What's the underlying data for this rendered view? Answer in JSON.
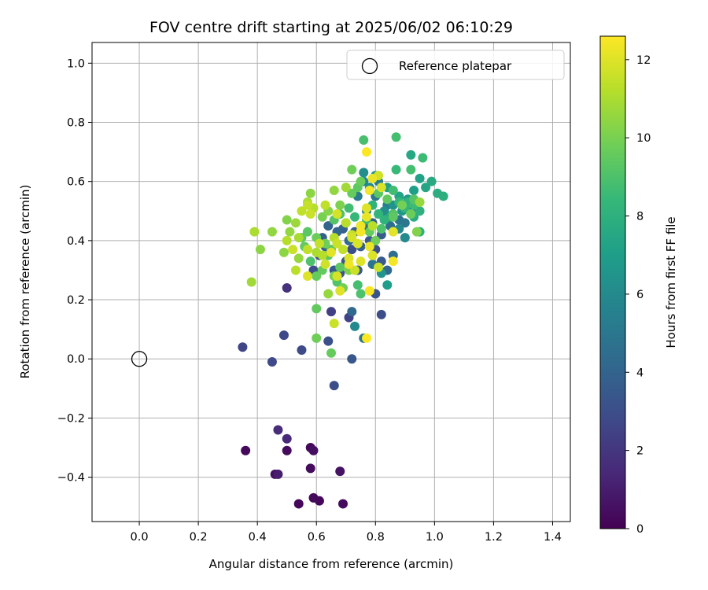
{
  "chart_data": {
    "type": "scatter",
    "title": "FOV centre drift starting at 2025/06/02 06:10:29",
    "xlabel": "Angular distance from reference (arcmin)",
    "ylabel": "Rotation from reference (arcmin)",
    "xlim": [
      -0.16,
      1.46
    ],
    "ylim": [
      -0.55,
      1.07
    ],
    "xticks": [
      "0.0",
      "0.2",
      "0.4",
      "0.6",
      "0.8",
      "1.0",
      "1.2",
      "1.4"
    ],
    "xtick_values": [
      0.0,
      0.2,
      0.4,
      0.6,
      0.8,
      1.0,
      1.2,
      1.4
    ],
    "yticks": [
      "−0.4",
      "−0.2",
      "0.0",
      "0.2",
      "0.4",
      "0.6",
      "0.8",
      "1.0"
    ],
    "ytick_values": [
      -0.4,
      -0.2,
      0.0,
      0.2,
      0.4,
      0.6,
      0.8,
      1.0
    ],
    "grid": true,
    "legend": {
      "placement": "top-right",
      "entries": [
        "Reference platepar"
      ]
    },
    "reference_point": {
      "x": 0.0,
      "y": 0.0,
      "marker": "open-circle"
    },
    "colorbar": {
      "label": "Hours from first FF file",
      "colormap": "viridis",
      "range": [
        0,
        12.6
      ],
      "ticks": [
        "0",
        "2",
        "4",
        "6",
        "8",
        "10",
        "12"
      ],
      "tick_values": [
        0,
        2,
        4,
        6,
        8,
        10,
        12
      ]
    },
    "points": [
      [
        0.36,
        -0.31,
        0.3
      ],
      [
        0.46,
        -0.39,
        0.5
      ],
      [
        0.5,
        -0.31,
        0.4
      ],
      [
        0.54,
        -0.49,
        0.2
      ],
      [
        0.58,
        -0.3,
        0.3
      ],
      [
        0.59,
        -0.31,
        0.5
      ],
      [
        0.58,
        -0.37,
        0.4
      ],
      [
        0.59,
        -0.47,
        0.3
      ],
      [
        0.61,
        -0.48,
        0.2
      ],
      [
        0.69,
        -0.49,
        0.4
      ],
      [
        0.68,
        -0.38,
        0.6
      ],
      [
        0.47,
        -0.24,
        1.6
      ],
      [
        0.5,
        -0.27,
        1.5
      ],
      [
        0.47,
        -0.39,
        1.0
      ],
      [
        0.35,
        0.04,
        2.6
      ],
      [
        0.45,
        -0.01,
        2.8
      ],
      [
        0.49,
        0.08,
        2.7
      ],
      [
        0.55,
        0.03,
        2.9
      ],
      [
        0.5,
        0.24,
        1.8
      ],
      [
        0.66,
        -0.09,
        3.0
      ],
      [
        0.64,
        0.06,
        3.1
      ],
      [
        0.65,
        0.16,
        2.4
      ],
      [
        0.71,
        0.14,
        2.5
      ],
      [
        0.72,
        0.0,
        3.4
      ],
      [
        0.82,
        0.15,
        3.0
      ],
      [
        0.8,
        0.22,
        3.3
      ],
      [
        0.76,
        0.07,
        5.0
      ],
      [
        0.73,
        0.11,
        6.0
      ],
      [
        0.72,
        0.16,
        4.2
      ],
      [
        0.59,
        0.3,
        3.0
      ],
      [
        0.61,
        0.35,
        3.2
      ],
      [
        0.63,
        0.38,
        3.5
      ],
      [
        0.66,
        0.3,
        3.6
      ],
      [
        0.68,
        0.29,
        3.2
      ],
      [
        0.7,
        0.33,
        3.3
      ],
      [
        0.72,
        0.37,
        3.0
      ],
      [
        0.74,
        0.3,
        3.5
      ],
      [
        0.75,
        0.38,
        3.8
      ],
      [
        0.78,
        0.4,
        3.4
      ],
      [
        0.8,
        0.37,
        3.1
      ],
      [
        0.82,
        0.33,
        3.6
      ],
      [
        0.84,
        0.3,
        4.2
      ],
      [
        0.86,
        0.35,
        4.5
      ],
      [
        0.62,
        0.41,
        3.8
      ],
      [
        0.64,
        0.45,
        4.0
      ],
      [
        0.67,
        0.43,
        4.1
      ],
      [
        0.69,
        0.44,
        3.9
      ],
      [
        0.71,
        0.4,
        4.3
      ],
      [
        0.73,
        0.43,
        3.7
      ],
      [
        0.76,
        0.45,
        4.4
      ],
      [
        0.79,
        0.46,
        4.0
      ],
      [
        0.82,
        0.42,
        3.6
      ],
      [
        0.85,
        0.45,
        4.6
      ],
      [
        0.88,
        0.47,
        4.8
      ],
      [
        0.9,
        0.46,
        5.0
      ],
      [
        0.92,
        0.5,
        5.3
      ],
      [
        0.84,
        0.52,
        5.4
      ],
      [
        0.8,
        0.55,
        5.0
      ],
      [
        0.77,
        0.5,
        5.6
      ],
      [
        0.74,
        0.55,
        5.2
      ],
      [
        0.76,
        0.6,
        5.8
      ],
      [
        0.78,
        0.58,
        6.0
      ],
      [
        0.81,
        0.6,
        5.2
      ],
      [
        0.83,
        0.5,
        6.2
      ],
      [
        0.86,
        0.52,
        6.4
      ],
      [
        0.89,
        0.5,
        6.6
      ],
      [
        0.91,
        0.54,
        6.8
      ],
      [
        0.93,
        0.57,
        7.0
      ],
      [
        0.95,
        0.61,
        7.2
      ],
      [
        0.97,
        0.58,
        7.4
      ],
      [
        0.99,
        0.6,
        7.6
      ],
      [
        1.01,
        0.56,
        7.8
      ],
      [
        1.03,
        0.55,
        7.9
      ],
      [
        0.88,
        0.55,
        7.3
      ],
      [
        0.84,
        0.58,
        7.1
      ],
      [
        0.8,
        0.62,
        6.5
      ],
      [
        0.76,
        0.63,
        6.2
      ],
      [
        0.9,
        0.41,
        6.0
      ],
      [
        0.88,
        0.44,
        5.9
      ],
      [
        0.85,
        0.48,
        7.6
      ],
      [
        0.84,
        0.25,
        7.0
      ],
      [
        0.82,
        0.29,
        6.5
      ],
      [
        0.79,
        0.32,
        4.8
      ],
      [
        0.93,
        0.48,
        7.8
      ],
      [
        0.95,
        0.43,
        8.0
      ],
      [
        0.96,
        0.68,
        8.6
      ],
      [
        0.92,
        0.69,
        7.5
      ],
      [
        0.92,
        0.64,
        8.8
      ],
      [
        0.87,
        0.64,
        8.5
      ],
      [
        0.76,
        0.74,
        8.9
      ],
      [
        0.87,
        0.75,
        8.8
      ],
      [
        0.86,
        0.57,
        8.7
      ],
      [
        0.88,
        0.53,
        8.4
      ],
      [
        0.9,
        0.51,
        8.3
      ],
      [
        0.91,
        0.53,
        8.2
      ],
      [
        0.93,
        0.52,
        8.6
      ],
      [
        0.95,
        0.5,
        8.0
      ],
      [
        0.83,
        0.47,
        8.1
      ],
      [
        0.81,
        0.49,
        8.3
      ],
      [
        0.79,
        0.52,
        8.2
      ],
      [
        0.77,
        0.47,
        8.5
      ],
      [
        0.75,
        0.45,
        8.8
      ],
      [
        0.73,
        0.48,
        8.4
      ],
      [
        0.71,
        0.51,
        8.7
      ],
      [
        0.7,
        0.46,
        8.6
      ],
      [
        0.68,
        0.49,
        9.0
      ],
      [
        0.66,
        0.47,
        9.2
      ],
      [
        0.74,
        0.25,
        8.8
      ],
      [
        0.75,
        0.22,
        9.0
      ],
      [
        0.74,
        0.58,
        9.4
      ],
      [
        0.72,
        0.64,
        9.8
      ],
      [
        0.72,
        0.56,
        9.6
      ],
      [
        0.75,
        0.6,
        9.7
      ],
      [
        0.81,
        0.56,
        9.3
      ],
      [
        0.84,
        0.54,
        9.5
      ],
      [
        0.86,
        0.49,
        9.1
      ],
      [
        0.82,
        0.44,
        9.0
      ],
      [
        0.78,
        0.43,
        9.6
      ],
      [
        0.8,
        0.4,
        9.8
      ],
      [
        0.86,
        0.48,
        9.4
      ],
      [
        0.89,
        0.52,
        9.9
      ],
      [
        0.92,
        0.49,
        9.7
      ],
      [
        0.94,
        0.43,
        10.2
      ],
      [
        0.95,
        0.53,
        10.6
      ],
      [
        0.93,
        0.54,
        9.2
      ],
      [
        0.68,
        0.31,
        9.4
      ],
      [
        0.66,
        0.28,
        9.9
      ],
      [
        0.64,
        0.35,
        9.3
      ],
      [
        0.62,
        0.3,
        9.5
      ],
      [
        0.6,
        0.28,
        9.6
      ],
      [
        0.58,
        0.33,
        9.0
      ],
      [
        0.56,
        0.38,
        9.5
      ],
      [
        0.55,
        0.41,
        9.4
      ],
      [
        0.57,
        0.43,
        9.3
      ],
      [
        0.6,
        0.41,
        9.7
      ],
      [
        0.63,
        0.39,
        9.8
      ],
      [
        0.65,
        0.37,
        9.4
      ],
      [
        0.67,
        0.26,
        9.1
      ],
      [
        0.69,
        0.24,
        9.9
      ],
      [
        0.71,
        0.3,
        10.1
      ],
      [
        0.6,
        0.17,
        9.5
      ],
      [
        0.6,
        0.07,
        9.8
      ],
      [
        0.65,
        0.02,
        9.6
      ],
      [
        0.66,
        0.12,
        11.6
      ],
      [
        0.64,
        0.22,
        10.6
      ],
      [
        0.62,
        0.48,
        10.0
      ],
      [
        0.64,
        0.5,
        10.3
      ],
      [
        0.68,
        0.52,
        10.1
      ],
      [
        0.66,
        0.57,
        10.5
      ],
      [
        0.7,
        0.58,
        10.8
      ],
      [
        0.58,
        0.56,
        10.4
      ],
      [
        0.57,
        0.53,
        11.0
      ],
      [
        0.59,
        0.51,
        11.2
      ],
      [
        0.55,
        0.5,
        11.4
      ],
      [
        0.53,
        0.46,
        10.7
      ],
      [
        0.5,
        0.47,
        10.2
      ],
      [
        0.51,
        0.43,
        10.5
      ],
      [
        0.49,
        0.36,
        10.4
      ],
      [
        0.54,
        0.34,
        10.6
      ],
      [
        0.53,
        0.3,
        11.3
      ],
      [
        0.57,
        0.28,
        12.0
      ],
      [
        0.45,
        0.43,
        10.5
      ],
      [
        0.39,
        0.43,
        11.0
      ],
      [
        0.41,
        0.37,
        10.4
      ],
      [
        0.38,
        0.26,
        10.8
      ],
      [
        0.5,
        0.4,
        11.2
      ],
      [
        0.52,
        0.37,
        11.6
      ],
      [
        0.54,
        0.41,
        10.9
      ],
      [
        0.57,
        0.37,
        11.4
      ],
      [
        0.6,
        0.36,
        11.0
      ],
      [
        0.62,
        0.35,
        11.2
      ],
      [
        0.67,
        0.28,
        11.8
      ],
      [
        0.68,
        0.23,
        12.0
      ],
      [
        0.57,
        0.52,
        11.5
      ],
      [
        0.58,
        0.49,
        11.6
      ],
      [
        0.63,
        0.52,
        11.4
      ],
      [
        0.67,
        0.49,
        11.8
      ],
      [
        0.7,
        0.46,
        11.3
      ],
      [
        0.72,
        0.42,
        11.5
      ],
      [
        0.74,
        0.39,
        11.9
      ],
      [
        0.75,
        0.45,
        12.3
      ],
      [
        0.77,
        0.51,
        12.0
      ],
      [
        0.78,
        0.57,
        12.4
      ],
      [
        0.79,
        0.61,
        12.2
      ],
      [
        0.81,
        0.62,
        11.7
      ],
      [
        0.82,
        0.58,
        11.9
      ],
      [
        0.86,
        0.43,
        12.1
      ],
      [
        0.86,
        0.33,
        12.4
      ],
      [
        0.81,
        0.31,
        11.6
      ],
      [
        0.79,
        0.35,
        11.9
      ],
      [
        0.78,
        0.38,
        12.2
      ],
      [
        0.75,
        0.33,
        12.0
      ],
      [
        0.73,
        0.3,
        11.6
      ],
      [
        0.71,
        0.34,
        11.9
      ],
      [
        0.71,
        0.32,
        12.3
      ],
      [
        0.69,
        0.37,
        11.4
      ],
      [
        0.67,
        0.39,
        11.6
      ],
      [
        0.66,
        0.41,
        11.2
      ],
      [
        0.65,
        0.36,
        12.1
      ],
      [
        0.63,
        0.32,
        11.7
      ],
      [
        0.61,
        0.39,
        11.5
      ],
      [
        0.78,
        0.23,
        12.5
      ],
      [
        0.77,
        0.07,
        12.6
      ],
      [
        0.77,
        0.7,
        12.6
      ],
      [
        0.75,
        0.43,
        12.4
      ],
      [
        0.72,
        0.41,
        11.8
      ],
      [
        0.77,
        0.48,
        12.2
      ],
      [
        0.79,
        0.45,
        11.3
      ]
    ]
  }
}
